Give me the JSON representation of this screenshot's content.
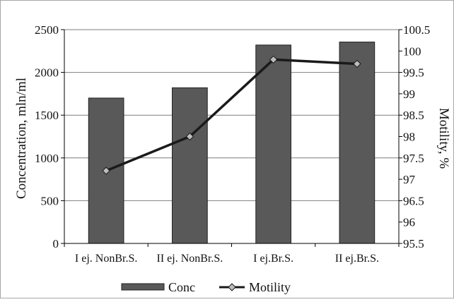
{
  "chart_data": {
    "type": "bar",
    "categories": [
      "I ej. NonBr.S.",
      "II ej. NonBr.S.",
      "I ej.Br.S.",
      "II ej.Br.S."
    ],
    "series": [
      {
        "name": "Conc",
        "kind": "bar",
        "axis": "left",
        "values": [
          1700,
          1820,
          2320,
          2355
        ],
        "color": "#595959"
      },
      {
        "name": "Motility",
        "kind": "line",
        "axis": "right",
        "values": [
          97.2,
          98.0,
          99.8,
          99.7
        ],
        "color": "#1a1a1a",
        "marker_color": "#bdbdbd"
      }
    ],
    "ylabel": "Concentration, mln/ml",
    "ylabel_right": "Motility, %",
    "ylim": [
      0,
      2500
    ],
    "ylim_right": [
      95.5,
      100.5
    ],
    "yticks": [
      "0",
      "500",
      "1000",
      "1500",
      "2000",
      "2500"
    ],
    "yticks_right": [
      "95.5",
      "96",
      "96.5",
      "97",
      "97.5",
      "98",
      "98.5",
      "99",
      "99.5",
      "100",
      "100.5"
    ],
    "grid": true,
    "legend_position": "bottom"
  },
  "colors": {
    "grid": "#7f7f7f",
    "bar_stroke": "#1f1f1f",
    "frame": "#a6a6a6"
  }
}
